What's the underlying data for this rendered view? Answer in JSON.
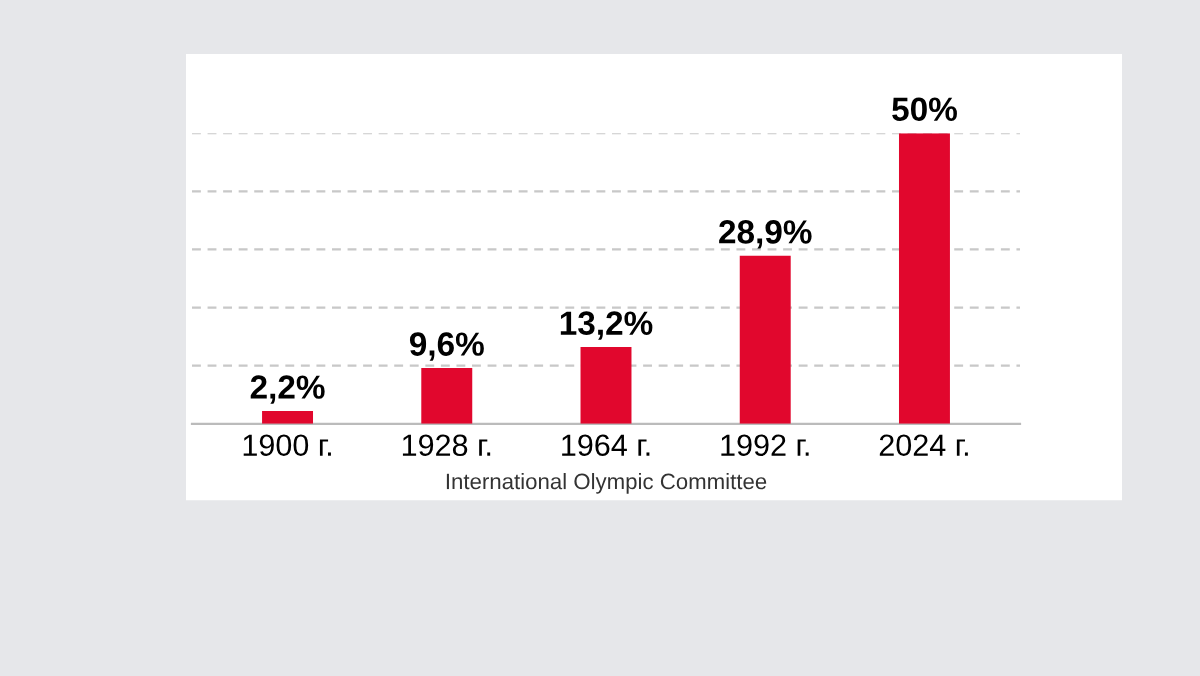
{
  "chart_data": {
    "type": "bar",
    "categories": [
      "1900 г.",
      "1928 г.",
      "1964 г.",
      "1992 г.",
      "2024 г."
    ],
    "values": [
      2.2,
      9.6,
      13.2,
      28.9,
      50
    ],
    "value_labels": [
      "2,2%",
      "9,6%",
      "13,2%",
      "28,9%",
      "50%"
    ],
    "color": "#e1072d",
    "ylim": [
      0,
      50
    ],
    "yticks": [
      {
        "value": 10,
        "label": null
      },
      {
        "value": 20,
        "label": null
      },
      {
        "value": 30,
        "label": null
      },
      {
        "value": 40,
        "label": null
      },
      {
        "value": 50,
        "label": null
      }
    ],
    "tick_labels": "x",
    "grid": "y",
    "legend": false,
    "annotations": [
      "International Olympic Committee"
    ]
  }
}
